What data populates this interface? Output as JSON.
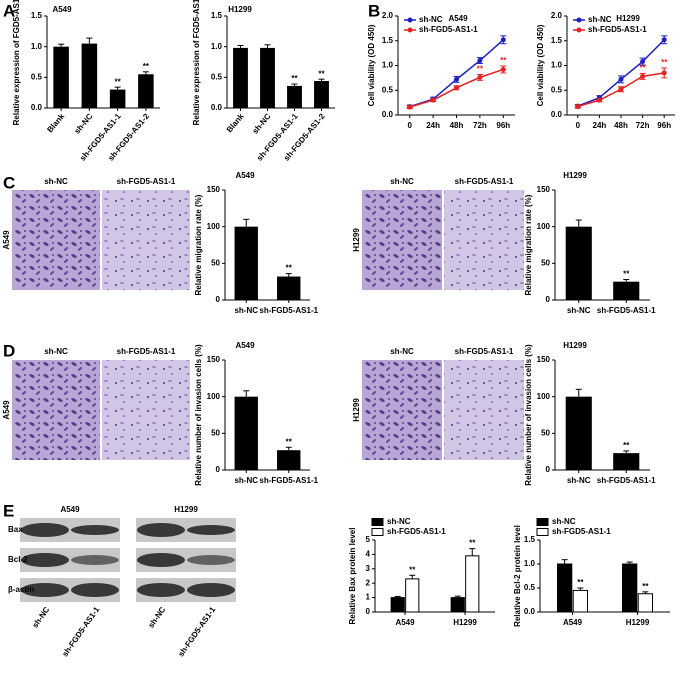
{
  "chart_data": [
    {
      "type": "bar",
      "title": "A549",
      "ylabel": "Relative expression of FGD5-AS1",
      "categories": [
        "Blank",
        "sh-NC",
        "sh-FGD5-AS1-1",
        "sh-FGD5-AS1-2"
      ],
      "values": [
        1.0,
        1.05,
        0.3,
        0.55
      ],
      "errors": [
        0.04,
        0.09,
        0.04,
        0.04
      ],
      "significance": [
        null,
        null,
        "**",
        "**"
      ],
      "color": "#000000",
      "ylim": [
        0,
        1.5
      ],
      "yticks": [
        {
          "value": 0,
          "label": "0.0"
        },
        {
          "value": 0.5,
          "label": "0.5"
        },
        {
          "value": 1,
          "label": "1.0"
        },
        {
          "value": 1.5,
          "label": "1.5"
        }
      ]
    },
    {
      "type": "bar",
      "title": "H1299",
      "ylabel": "Relative expression of FGD5-AS1",
      "categories": [
        "Blank",
        "sh-NC",
        "sh-FGD5-AS1-1",
        "sh-FGD5-AS1-2"
      ],
      "values": [
        0.98,
        0.98,
        0.36,
        0.44
      ],
      "errors": [
        0.04,
        0.05,
        0.03,
        0.03
      ],
      "significance": [
        null,
        null,
        "**",
        "**"
      ],
      "color": "#000000",
      "ylim": [
        0,
        1.5
      ],
      "yticks": [
        {
          "value": 0,
          "label": "0.0"
        },
        {
          "value": 0.5,
          "label": "0.5"
        },
        {
          "value": 1,
          "label": "1.0"
        },
        {
          "value": 1.5,
          "label": "1.5"
        }
      ]
    },
    {
      "type": "line",
      "title": "A549",
      "ylabel": "Cell viability (OD 450)",
      "categories": [
        "0",
        "24h",
        "48h",
        "72h",
        "96h"
      ],
      "series": [
        {
          "name": "sh-NC",
          "color": "#1f1fbf",
          "values": [
            0.17,
            0.32,
            0.72,
            1.1,
            1.52
          ],
          "errors": [
            0.03,
            0.04,
            0.06,
            0.06,
            0.08
          ],
          "significance": [
            null,
            null,
            null,
            null,
            null
          ]
        },
        {
          "name": "sh-FGD5-AS1-1",
          "color": "#e8201f",
          "values": [
            0.16,
            0.3,
            0.55,
            0.76,
            0.92
          ],
          "errors": [
            0.03,
            0.03,
            0.04,
            0.06,
            0.07
          ],
          "significance": [
            null,
            null,
            null,
            "**",
            "**"
          ]
        }
      ],
      "ylim": [
        0,
        2.0
      ],
      "yticks": [
        {
          "value": 0,
          "label": "0.0"
        },
        {
          "value": 0.5,
          "label": "0.5"
        },
        {
          "value": 1,
          "label": "1.0"
        },
        {
          "value": 1.5,
          "label": "1.5"
        },
        {
          "value": 2,
          "label": "2.0"
        }
      ]
    },
    {
      "type": "line",
      "title": "H1299",
      "ylabel": "Cell viability (OD 450)",
      "categories": [
        "0",
        "24h",
        "48h",
        "72h",
        "96h"
      ],
      "series": [
        {
          "name": "sh-NC",
          "color": "#1f1fbf",
          "values": [
            0.18,
            0.35,
            0.72,
            1.08,
            1.52
          ],
          "errors": [
            0.03,
            0.04,
            0.07,
            0.07,
            0.08
          ],
          "significance": [
            null,
            null,
            null,
            null,
            null
          ]
        },
        {
          "name": "sh-FGD5-AS1-1",
          "color": "#e8201f",
          "values": [
            0.17,
            0.3,
            0.52,
            0.78,
            0.85
          ],
          "errors": [
            0.03,
            0.03,
            0.05,
            0.06,
            0.1
          ],
          "significance": [
            null,
            null,
            null,
            "**",
            "**"
          ]
        }
      ],
      "ylim": [
        0,
        2.0
      ],
      "yticks": [
        {
          "value": 0,
          "label": "0.0"
        },
        {
          "value": 0.5,
          "label": "0.5"
        },
        {
          "value": 1,
          "label": "1.0"
        },
        {
          "value": 1.5,
          "label": "1.5"
        },
        {
          "value": 2,
          "label": "2.0"
        }
      ]
    },
    {
      "type": "bar",
      "title": "A549",
      "ylabel": "Relative migration rate (%)",
      "categories": [
        "sh-NC",
        "sh-FGD5-AS1-1"
      ],
      "values": [
        100,
        32
      ],
      "errors": [
        10,
        4
      ],
      "significance": [
        null,
        "**"
      ],
      "color": "#000000",
      "ylim": [
        0,
        150
      ],
      "yticks": [
        0,
        50,
        100,
        150
      ]
    },
    {
      "type": "bar",
      "title": "H1299",
      "ylabel": "Relative migration rate (%)",
      "categories": [
        "sh-NC",
        "sh-FGD5-AS1-1"
      ],
      "values": [
        100,
        25
      ],
      "errors": [
        9,
        3
      ],
      "significance": [
        null,
        "**"
      ],
      "color": "#000000",
      "ylim": [
        0,
        150
      ],
      "yticks": [
        0,
        50,
        100,
        150
      ]
    },
    {
      "type": "bar",
      "title": "A549",
      "ylabel": "Relative number of invasion cells (%)",
      "categories": [
        "sh-NC",
        "sh-FGD5-AS1-1"
      ],
      "values": [
        100,
        27
      ],
      "errors": [
        8,
        4
      ],
      "significance": [
        null,
        "**"
      ],
      "color": "#000000",
      "ylim": [
        0,
        150
      ],
      "yticks": [
        0,
        50,
        100,
        150
      ]
    },
    {
      "type": "bar",
      "title": "H1299",
      "ylabel": "Relative number of invasion cells (%)",
      "categories": [
        "sh-NC",
        "sh-FGD5-AS1-1"
      ],
      "values": [
        100,
        23
      ],
      "errors": [
        10,
        3
      ],
      "significance": [
        null,
        "**"
      ],
      "color": "#000000",
      "ylim": [
        0,
        150
      ],
      "yticks": [
        0,
        50,
        100,
        150
      ]
    },
    {
      "type": "bar",
      "ylabel": "Relative Bax protein level",
      "categories": [
        "A549",
        "H1299"
      ],
      "series": [
        {
          "name": "sh-NC",
          "color": "#000000",
          "values": [
            1.0,
            1.0
          ],
          "errors": [
            0.08,
            0.1
          ],
          "significance": [
            null,
            null
          ]
        },
        {
          "name": "sh-FGD5-AS1-1",
          "color": "#ffffff",
          "values": [
            2.3,
            3.9
          ],
          "errors": [
            0.25,
            0.5
          ],
          "significance": [
            "**",
            "**"
          ]
        }
      ],
      "ylim": [
        0,
        5
      ],
      "yticks": [
        0,
        1,
        2,
        3,
        4,
        5
      ]
    },
    {
      "type": "bar",
      "ylabel": "Relative Bcl-2 protein level",
      "categories": [
        "A549",
        "H1299"
      ],
      "series": [
        {
          "name": "sh-NC",
          "color": "#000000",
          "values": [
            1.0,
            1.0
          ],
          "errors": [
            0.09,
            0.04
          ],
          "significance": [
            null,
            null
          ]
        },
        {
          "name": "sh-FGD5-AS1-1",
          "color": "#ffffff",
          "values": [
            0.45,
            0.38
          ],
          "errors": [
            0.05,
            0.04
          ],
          "significance": [
            "**",
            "**"
          ]
        }
      ],
      "ylim": [
        0,
        1.5
      ],
      "yticks": [
        {
          "value": 0,
          "label": "0.0"
        },
        {
          "value": 0.5,
          "label": "0.5"
        },
        {
          "value": 1,
          "label": "1.0"
        },
        {
          "value": 1.5,
          "label": "1.5"
        }
      ]
    }
  ],
  "figure": {
    "panels": [
      "A",
      "B",
      "C",
      "D",
      "E"
    ],
    "micrographs": [
      {
        "cell_line": "A549",
        "labels": [
          "sh-NC",
          "sh-FGD5-AS1-1"
        ]
      },
      {
        "cell_line": "H1299",
        "labels": [
          "sh-NC",
          "sh-FGD5-AS1-1"
        ]
      },
      {
        "cell_line": "A549",
        "labels": [
          "sh-NC",
          "sh-FGD5-AS1-1"
        ]
      },
      {
        "cell_line": "H1299",
        "labels": [
          "sh-NC",
          "sh-FGD5-AS1-1"
        ]
      }
    ],
    "western_blot": {
      "cell_lines": [
        "A549",
        "H1299"
      ],
      "proteins": [
        "Bax",
        "Bcl-2",
        "β-actin"
      ],
      "lanes": [
        "sh-NC",
        "sh-FGD5-AS1-1"
      ]
    }
  }
}
